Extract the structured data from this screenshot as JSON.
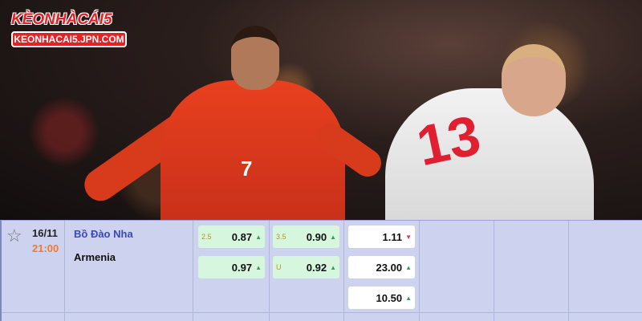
{
  "logo": {
    "name": "KÈONHÀCÁI5",
    "url": "KEONHACAI5.JPN.COM"
  },
  "photo": {
    "jersey_numbers": [
      "7",
      "13"
    ]
  },
  "match": {
    "date": "16/11",
    "time": "21:00",
    "home": "Bồ Đào Nha",
    "away": "Armenia",
    "favorite_icon": "star-outline-icon",
    "handicap": [
      {
        "line": "2.5",
        "odds": "0.87",
        "trend": "up"
      },
      {
        "line": "",
        "odds": "0.97",
        "trend": "up"
      }
    ],
    "over_under": [
      {
        "line": "3.5",
        "odds": "0.90",
        "trend": "up"
      },
      {
        "line": "U",
        "odds": "0.92",
        "trend": "up"
      }
    ],
    "moneyline": [
      {
        "odds": "1.11",
        "trend": "down"
      },
      {
        "odds": "23.00",
        "trend": "up"
      },
      {
        "odds": "10.50",
        "trend": "up"
      }
    ]
  },
  "colors": {
    "home_team": "#3a48b8",
    "time": "#f07a30",
    "odds_bg": "#d6f7de",
    "up": "#3a9a5a",
    "down": "#d04040"
  }
}
